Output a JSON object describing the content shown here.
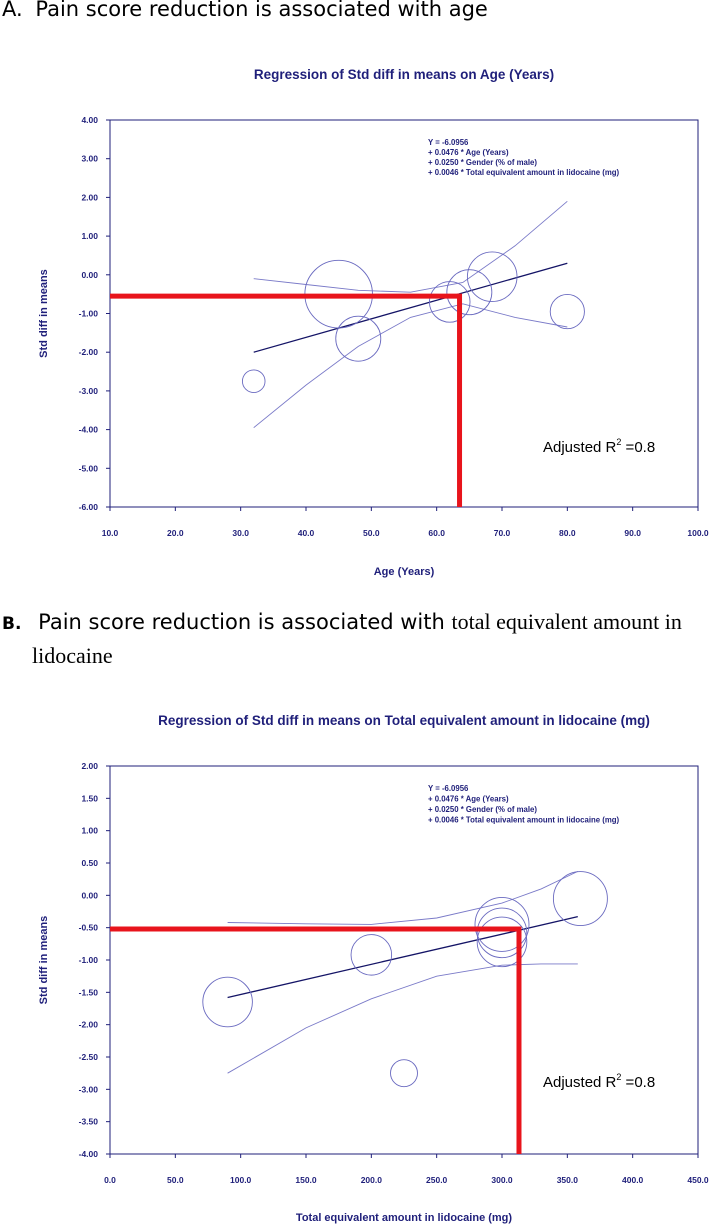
{
  "panels": {
    "a": {
      "letter": "A.",
      "caption": "Pain score reduction is associated with age"
    },
    "b": {
      "letter": "B.",
      "caption_part1": "Pain score reduction is associated with",
      "caption_part2": "total equivalent amount in",
      "caption_part3": "lidocaine"
    }
  },
  "colors": {
    "navy": "#1f1f7a",
    "line": "#141466",
    "ci": "#7a7ac8",
    "bubble": "#6a6ac0",
    "highlight": "#e8141c"
  },
  "chart_data": [
    {
      "type": "scatter",
      "title": "Regression of Std diff in means on Age (Years)",
      "xlabel": "Age (Years)",
      "ylabel": "Std diff in means",
      "xlim": [
        10,
        100
      ],
      "ylim": [
        -6,
        4
      ],
      "xticks": [
        "10.0",
        "20.0",
        "30.0",
        "40.0",
        "50.0",
        "60.0",
        "70.0",
        "80.0",
        "90.0",
        "100.0"
      ],
      "yticks": [
        "4.00",
        "3.00",
        "2.00",
        "1.00",
        "0.00",
        "-1.00",
        "-2.00",
        "-3.00",
        "-4.00",
        "-5.00",
        "-6.00"
      ],
      "points": [
        {
          "x": 32,
          "y": -2.75,
          "w": 0.25
        },
        {
          "x": 45,
          "y": -0.5,
          "w": 0.75
        },
        {
          "x": 48,
          "y": -1.65,
          "w": 0.5
        },
        {
          "x": 62,
          "y": -0.7,
          "w": 0.45
        },
        {
          "x": 65,
          "y": -0.45,
          "w": 0.5
        },
        {
          "x": 68.5,
          "y": -0.05,
          "w": 0.55
        },
        {
          "x": 80,
          "y": -0.95,
          "w": 0.38
        }
      ],
      "regression": {
        "x": [
          32,
          80
        ],
        "y": [
          -2.0,
          0.3
        ]
      },
      "ci_upper": {
        "x": [
          32,
          40,
          48,
          56,
          64,
          72,
          80
        ],
        "y": [
          -0.1,
          -0.25,
          -0.4,
          -0.45,
          -0.2,
          0.75,
          1.9
        ]
      },
      "ci_lower": {
        "x": [
          32,
          40,
          48,
          56,
          64,
          72,
          80
        ],
        "y": [
          -3.95,
          -2.85,
          -1.85,
          -1.1,
          -0.75,
          -1.1,
          -1.35
        ]
      },
      "highlight": {
        "x": 63.5,
        "y": -0.55
      },
      "equation": [
        "Y = -6.0956",
        "+ 0.0476 * Age (Years)",
        "+ 0.0250 * Gender (% of male)",
        "+ 0.0046 * Total equivalent amount in lidocaine (mg)"
      ],
      "r2_label": "Adjusted R",
      "r2_sup": "2",
      "r2_value": " =0.8"
    },
    {
      "type": "scatter",
      "title": "Regression of Std diff in means on Total equivalent amount in lidocaine (mg)",
      "xlabel": "Total equivalent amount in lidocaine (mg)",
      "ylabel": "Std diff in means",
      "xlim": [
        0,
        450
      ],
      "ylim": [
        -4,
        2
      ],
      "xticks": [
        "0.0",
        "50.0",
        "100.0",
        "150.0",
        "200.0",
        "250.0",
        "300.0",
        "350.0",
        "400.0",
        "450.0"
      ],
      "yticks": [
        "2.00",
        "1.50",
        "1.00",
        "0.50",
        "0.00",
        "-0.50",
        "-1.00",
        "-1.50",
        "-2.00",
        "-2.50",
        "-3.00",
        "-3.50",
        "-4.00"
      ],
      "points": [
        {
          "x": 90,
          "y": -1.65,
          "w": 0.55
        },
        {
          "x": 200,
          "y": -0.92,
          "w": 0.45
        },
        {
          "x": 225,
          "y": -2.75,
          "w": 0.3
        },
        {
          "x": 300,
          "y": -0.45,
          "w": 0.6
        },
        {
          "x": 300,
          "y": -0.58,
          "w": 0.55
        },
        {
          "x": 300,
          "y": -0.72,
          "w": 0.55
        },
        {
          "x": 360,
          "y": -0.05,
          "w": 0.6
        }
      ],
      "regression": {
        "x": [
          90,
          358
        ],
        "y": [
          -1.58,
          -0.33
        ]
      },
      "ci_upper": {
        "x": [
          90,
          150,
          200,
          250,
          300,
          330,
          358
        ],
        "y": [
          -0.42,
          -0.44,
          -0.45,
          -0.35,
          -0.12,
          0.1,
          0.37
        ]
      },
      "ci_lower": {
        "x": [
          90,
          150,
          200,
          250,
          300,
          330,
          358
        ],
        "y": [
          -2.75,
          -2.05,
          -1.6,
          -1.25,
          -1.08,
          -1.06,
          -1.06
        ]
      },
      "highlight": {
        "x": 313,
        "y": -0.52
      },
      "equation": [
        "Y = -6.0956",
        "+ 0.0476 * Age (Years)",
        "+ 0.0250 * Gender (% of male)",
        "+ 0.0046 * Total equivalent amount in lidocaine (mg)"
      ],
      "r2_label": "Adjusted R",
      "r2_sup": "2",
      "r2_value": " =0.8"
    }
  ]
}
